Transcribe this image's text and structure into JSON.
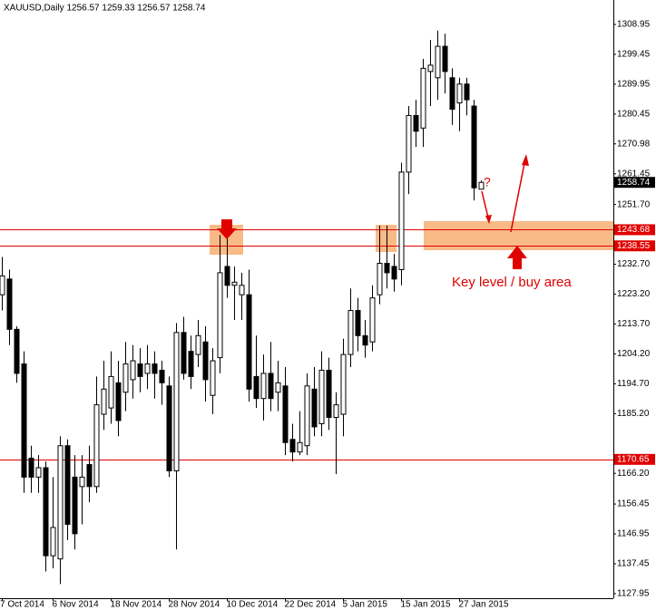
{
  "chart_data": {
    "type": "candlestick",
    "title": "XAUUSD,Daily  1256.57 1259.33 1256.57 1258.74",
    "categories": [
      "7 Oct 2014",
      null,
      null,
      null,
      null,
      null,
      null,
      "6 Nov 2014",
      null,
      null,
      null,
      null,
      null,
      null,
      null,
      "18 Nov 2014",
      null,
      null,
      null,
      null,
      null,
      null,
      null,
      "28 Nov 2014",
      null,
      null,
      null,
      null,
      null,
      null,
      null,
      "10 Dec 2014",
      null,
      null,
      null,
      null,
      null,
      null,
      null,
      "22 Dec 2014",
      null,
      null,
      null,
      null,
      null,
      null,
      null,
      "5 Jan 2015",
      null,
      null,
      null,
      null,
      null,
      null,
      null,
      "15 Jan 2015",
      null,
      null,
      null,
      null,
      null,
      null,
      null,
      "27 Jan 2015",
      null,
      null,
      null
    ],
    "open": [
      1223,
      1228,
      1212,
      1201,
      1171,
      1165,
      1168,
      1140,
      1139,
      1175,
      1165,
      1162,
      1169,
      1162,
      1185,
      1187,
      1195,
      1192,
      1196,
      1201,
      1198,
      1201,
      1199,
      1194,
      1167,
      1211,
      1205,
      1204,
      1208,
      1191,
      1203,
      1232,
      1226,
      1223,
      1223,
      1197,
      1190,
      1198,
      1192,
      1194,
      1177,
      1173,
      1175,
      1193,
      1182,
      1199,
      1184,
      1185,
      1204,
      1218,
      1210,
      1208,
      1223,
      1233,
      1232,
      1231,
      1262,
      1280,
      1276,
      1294,
      1292,
      1302,
      1292,
      1284,
      1290,
      1283,
      1256.57
    ],
    "high": [
      1235,
      1231,
      1213,
      1205,
      1175,
      1172,
      1170,
      1165,
      1178,
      1177,
      1172,
      1172,
      1175,
      1197,
      1202,
      1205,
      1202,
      1208,
      1207,
      1206,
      1207,
      1205,
      1202,
      1197,
      1214,
      1216,
      1210,
      1215,
      1213,
      1206,
      1242,
      1242,
      1232,
      1230,
      1231,
      1210,
      1204,
      1208,
      1202,
      1200,
      1182,
      1186,
      1198,
      1200,
      1205,
      1203,
      1192,
      1209,
      1225,
      1222,
      1215,
      1226,
      1245,
      1245,
      1236,
      1265,
      1283,
      1285,
      1298,
      1304,
      1307,
      1306,
      1295,
      1292,
      1292,
      1285,
      1259.33
    ],
    "low": [
      1218,
      1207,
      1195,
      1160,
      1160,
      1160,
      1135,
      1136,
      1131,
      1145,
      1142,
      1150,
      1157,
      1160,
      1180,
      1182,
      1178,
      1186,
      1190,
      1192,
      1193,
      1190,
      1188,
      1165,
      1142,
      1196,
      1193,
      1200,
      1189,
      1185,
      1198,
      1222,
      1215,
      1215,
      1189,
      1187,
      1183,
      1186,
      1186,
      1172,
      1170,
      1172,
      1172,
      1178,
      1178,
      1180,
      1166,
      1178,
      1200,
      1205,
      1203,
      1205,
      1220,
      1225,
      1224,
      1226,
      1255,
      1270,
      1270,
      1283,
      1285,
      1287,
      1277,
      1275,
      1280,
      1253,
      1256.57
    ],
    "close": [
      1229,
      1212,
      1198,
      1165,
      1165,
      1168,
      1140,
      1149,
      1175,
      1150,
      1147,
      1165,
      1162,
      1188,
      1193,
      1197,
      1183,
      1201,
      1202,
      1197,
      1201,
      1198,
      1195,
      1167,
      1211,
      1198,
      1197,
      1210,
      1196,
      1202,
      1230,
      1226,
      1227,
      1226,
      1193,
      1190,
      1198,
      1190,
      1195,
      1176,
      1173,
      1176,
      1194,
      1181,
      1199,
      1184,
      1188,
      1204,
      1218,
      1210,
      1207,
      1222,
      1233,
      1230,
      1228,
      1262,
      1280,
      1275,
      1295,
      1296,
      1302,
      1294,
      1282,
      1290,
      1285,
      1257,
      1258.74
    ],
    "up_color": "#ffffff",
    "down_color": "#000000",
    "ylim": [
      1126.5,
      1316.73
    ],
    "yticks": [
      1308.95,
      1299.45,
      1289.95,
      1280.45,
      1270.98,
      1261.45,
      {
        "value": 1251.7,
        "label": "1251.70"
      },
      {
        "value": 1232.7,
        "label": "1232.70"
      },
      {
        "value": 1223.2,
        "label": "1223.20"
      },
      {
        "value": 1213.7,
        "label": "1213.70"
      },
      {
        "value": 1204.2,
        "label": "1204.20"
      },
      {
        "value": 1194.7,
        "label": "1194.70"
      },
      {
        "value": 1185.2,
        "label": "1185.20"
      },
      {
        "value": 1166.2,
        "label": "1166.20"
      },
      1156.45,
      1146.95,
      1137.45,
      1127.95
    ],
    "hlines": [
      1243.68,
      1238.55,
      1170.65
    ],
    "hline_color": "#e00000",
    "last_price": 1258.74,
    "annotations": [
      "?",
      "Key level / buy area"
    ],
    "annotation_color": "#e00000"
  }
}
